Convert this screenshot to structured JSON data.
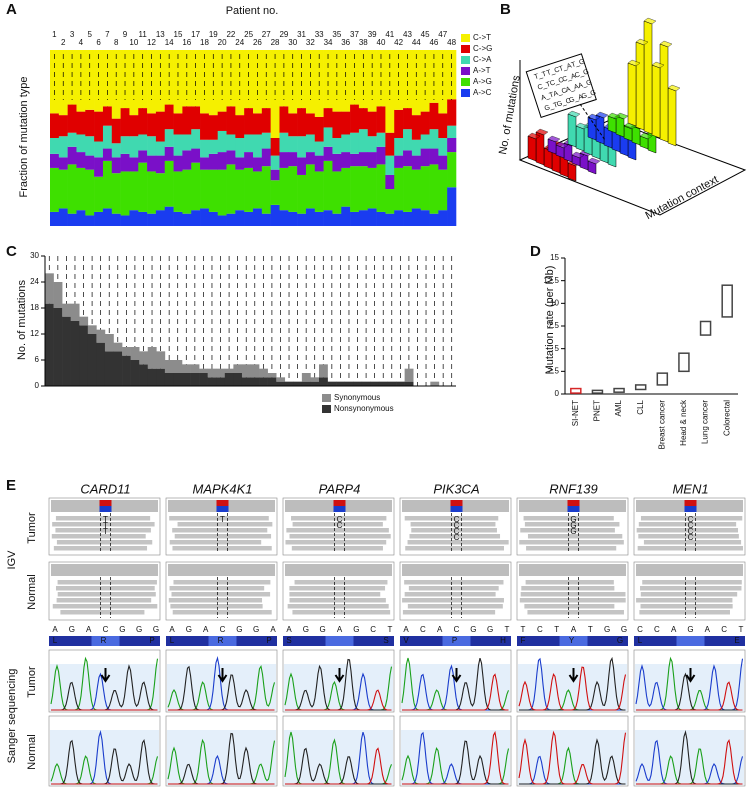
{
  "chart_data": [
    {
      "panel_label": "A",
      "type": "bar",
      "stacked": true,
      "title": "Patient no.",
      "y_label": "Fraction of mutation type",
      "categories": [
        "1",
        "2",
        "3",
        "4",
        "5",
        "6",
        "7",
        "8",
        "9",
        "10",
        "11",
        "12",
        "13",
        "14",
        "15",
        "16",
        "17",
        "18",
        "19",
        "20",
        "22",
        "24",
        "25",
        "26",
        "27",
        "28",
        "29",
        "30",
        "31",
        "32",
        "33",
        "34",
        "35",
        "36",
        "37",
        "38",
        "39",
        "40",
        "41",
        "42",
        "43",
        "44",
        "45",
        "46",
        "47",
        "48"
      ],
      "ylim": [
        0,
        100
      ],
      "series": [
        {
          "name": "C->T",
          "color": "#f5f000",
          "values": [
            36,
            37,
            31,
            35,
            34,
            35,
            32,
            39,
            33,
            37,
            33,
            36,
            35,
            31,
            36,
            32,
            32,
            36,
            37,
            35,
            32,
            37,
            33,
            36,
            33,
            50,
            32,
            36,
            33,
            36,
            38,
            33,
            35,
            35,
            31,
            33,
            35,
            32,
            47,
            34,
            33,
            37,
            35,
            30,
            36,
            28
          ]
        },
        {
          "name": "C->G",
          "color": "#e00000",
          "values": [
            14,
            12,
            16,
            13,
            15,
            17,
            11,
            14,
            16,
            12,
            15,
            13,
            17,
            14,
            12,
            16,
            13,
            15,
            14,
            11,
            16,
            13,
            15,
            12,
            14,
            10,
            15,
            13,
            16,
            12,
            14,
            11,
            15,
            13,
            16,
            12,
            14,
            15,
            13,
            16,
            12,
            14,
            13,
            15,
            14,
            15
          ]
        },
        {
          "name": "C->A",
          "color": "#40d9b0",
          "values": [
            9,
            12,
            8,
            10,
            11,
            9,
            13,
            8,
            10,
            12,
            9,
            11,
            8,
            10,
            12,
            9,
            11,
            10,
            8,
            12,
            9,
            11,
            10,
            13,
            9,
            8,
            11,
            9,
            12,
            10,
            8,
            11,
            9,
            10,
            12,
            13,
            9,
            8,
            11,
            10,
            12,
            9,
            8,
            11,
            10,
            7
          ]
        },
        {
          "name": "A->T",
          "color": "#7a10c8",
          "values": [
            8,
            7,
            10,
            9,
            8,
            11,
            7,
            9,
            10,
            8,
            7,
            9,
            10,
            8,
            9,
            11,
            8,
            7,
            9,
            10,
            8,
            7,
            9,
            8,
            10,
            6,
            9,
            8,
            10,
            7,
            9,
            8,
            10,
            9,
            7,
            8,
            9,
            10,
            8,
            7,
            9,
            8,
            10,
            9,
            8,
            8
          ]
        },
        {
          "name": "A->G",
          "color": "#3ee000",
          "values": [
            25,
            22,
            28,
            24,
            26,
            20,
            27,
            23,
            25,
            22,
            28,
            24,
            21,
            26,
            23,
            25,
            27,
            22,
            24,
            26,
            28,
            23,
            25,
            21,
            27,
            14,
            24,
            26,
            22,
            25,
            23,
            28,
            24,
            22,
            26,
            25,
            23,
            27,
            14,
            24,
            26,
            22,
            25,
            28,
            23,
            20
          ]
        },
        {
          "name": "A->C",
          "color": "#1a3cf0",
          "values": [
            8,
            10,
            7,
            9,
            6,
            8,
            10,
            7,
            6,
            9,
            8,
            7,
            9,
            11,
            8,
            7,
            9,
            10,
            8,
            6,
            7,
            9,
            8,
            10,
            7,
            12,
            9,
            8,
            7,
            10,
            8,
            9,
            7,
            11,
            8,
            9,
            10,
            8,
            7,
            9,
            8,
            10,
            9,
            7,
            9,
            22
          ]
        }
      ]
    },
    {
      "panel_label": "C",
      "type": "bar",
      "stacked": true,
      "y_label": "No. of mutations",
      "ylim": [
        0,
        30
      ],
      "yticks": [
        0,
        6,
        12,
        18,
        24,
        30
      ],
      "series": [
        {
          "name": "Synonymous",
          "color": "#8c8c8c",
          "values": [
            7,
            6,
            3,
            4,
            2,
            2,
            3,
            4,
            2,
            2,
            3,
            3,
            5,
            4,
            3,
            3,
            2,
            2,
            1,
            2,
            2,
            1,
            2,
            3,
            3,
            2,
            1,
            1,
            0,
            0,
            2,
            1,
            3,
            0,
            0,
            0,
            0,
            0,
            0,
            0,
            0,
            0,
            3,
            0,
            0,
            1,
            0,
            0
          ]
        },
        {
          "name": "Nonsynonymous",
          "color": "#333333",
          "values": [
            19,
            18,
            16,
            15,
            14,
            12,
            10,
            8,
            8,
            7,
            6,
            5,
            4,
            4,
            3,
            3,
            3,
            3,
            3,
            2,
            2,
            3,
            3,
            2,
            2,
            2,
            2,
            1,
            1,
            1,
            1,
            1,
            2,
            1,
            1,
            1,
            1,
            1,
            1,
            1,
            1,
            1,
            1,
            0,
            0,
            0,
            0,
            0
          ]
        }
      ]
    },
    {
      "panel_label": "D",
      "type": "range",
      "y_label": "Mutation rate (per Mb)",
      "categories": [
        "SI-NET",
        "PNET",
        "AML",
        "CLL",
        "Breast cancer",
        "Head & neck",
        "Lung cancer",
        "Colorectal"
      ],
      "colors": [
        "#d62728",
        "#444444",
        "#444444",
        "#444444",
        "#444444",
        "#444444",
        "#444444",
        "#444444"
      ],
      "low": [
        0.1,
        0.1,
        0.2,
        0.5,
        1,
        2.5,
        6.5,
        8.5
      ],
      "high": [
        0.6,
        0.4,
        0.6,
        1,
        2.3,
        4.5,
        8,
        12
      ],
      "ylim": [
        0,
        15
      ],
      "yticks": [
        0,
        2.5,
        5,
        7.5,
        10,
        12.5,
        15
      ]
    }
  ],
  "panel_b": {
    "panel_label": "B",
    "y_label": "No. of mutations",
    "x_label": "Mutation context",
    "contexts": [
      "T_T",
      "T_C",
      "T_A",
      "T_G",
      "C_T",
      "C_C",
      "C_A",
      "C_G",
      "A_T",
      "A_C",
      "A_A",
      "A_G",
      "G_T",
      "G_C",
      "G_A",
      "G_G"
    ]
  },
  "panel_e": {
    "panel_label": "E",
    "igv_label": "IGV",
    "sanger_label": "Sanger sequencing",
    "tumor_label": "Tumor",
    "normal_label": "Normal",
    "genes": [
      {
        "name": "CARD11",
        "bases": [
          "A",
          "G",
          "A",
          "C",
          "G",
          "G",
          "G"
        ],
        "aminos": [
          "L",
          "R",
          "P"
        ],
        "calls": [
          "T",
          "T",
          "T"
        ]
      },
      {
        "name": "MAPK4K1",
        "bases": [
          "A",
          "G",
          "A",
          "C",
          "G",
          "G",
          "A"
        ],
        "aminos": [
          "L",
          "R",
          "P"
        ],
        "calls": [
          "T"
        ]
      },
      {
        "name": "PARP4",
        "bases": [
          "A",
          "G",
          "G",
          "A",
          "G",
          "C",
          "T"
        ],
        "aminos": [
          "S",
          "S"
        ],
        "calls": [
          "C",
          "C"
        ]
      },
      {
        "name": "PIK3CA",
        "bases": [
          "A",
          "C",
          "A",
          "C",
          "G",
          "G",
          "T"
        ],
        "aminos": [
          "V",
          "P",
          "H"
        ],
        "calls": [
          "C",
          "C",
          "C",
          "C"
        ]
      },
      {
        "name": "RNF139",
        "bases": [
          "T",
          "C",
          "T",
          "A",
          "T",
          "G",
          "G"
        ],
        "aminos": [
          "F",
          "Y",
          "G"
        ],
        "calls": [
          "G",
          "G",
          "G"
        ]
      },
      {
        "name": "MEN1",
        "bases": [
          "C",
          "C",
          "A",
          "G",
          "A",
          "C",
          "T"
        ],
        "aminos": [
          "L",
          "E"
        ],
        "calls": [
          "C",
          "C",
          "C",
          "C"
        ]
      }
    ]
  }
}
